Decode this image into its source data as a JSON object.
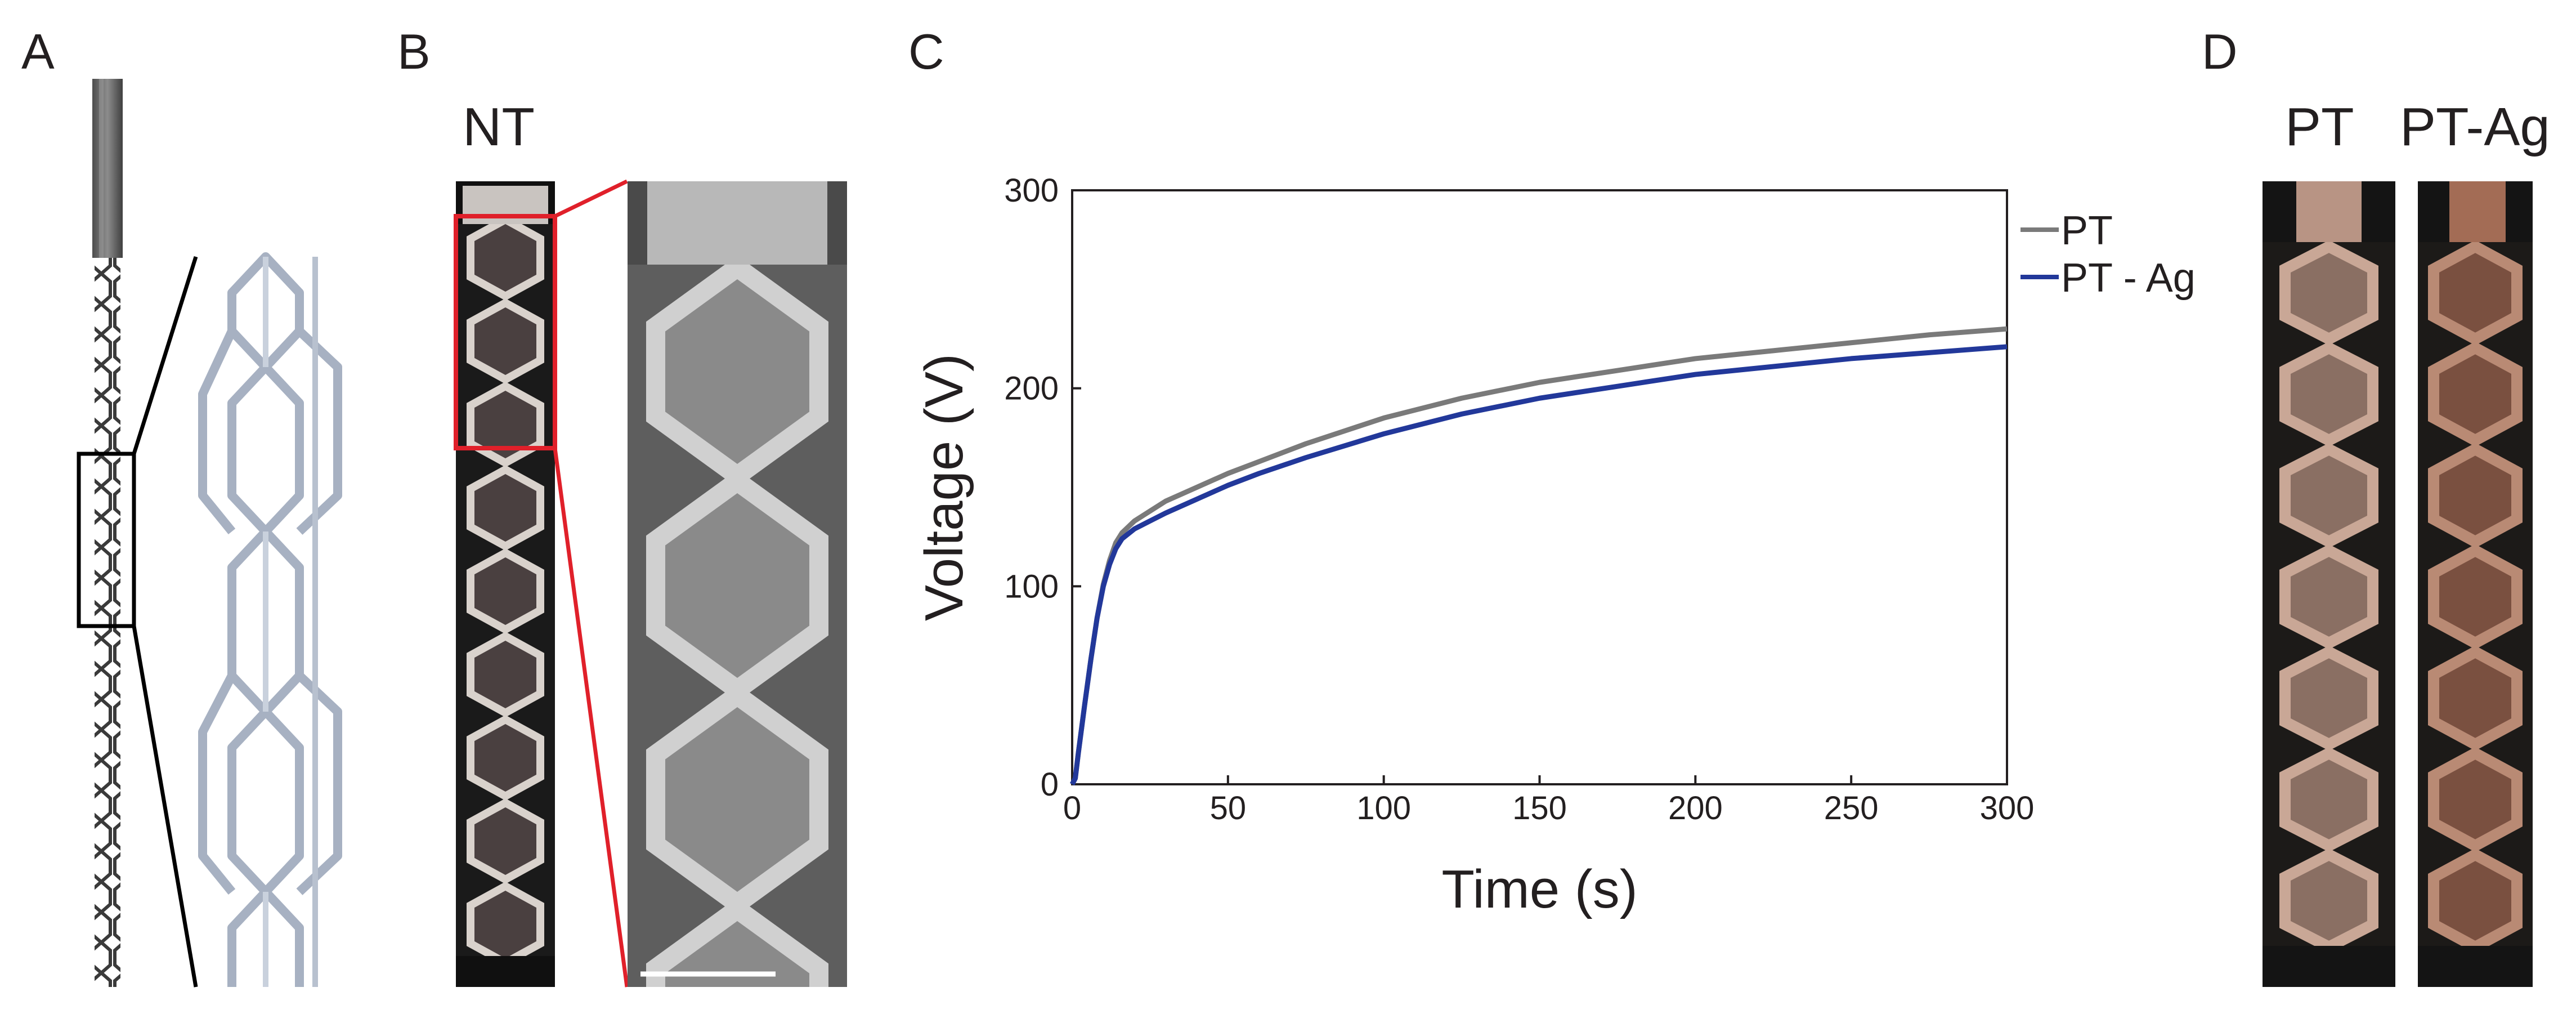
{
  "panels": {
    "a": "A",
    "b": "B",
    "c": "C",
    "d": "D"
  },
  "panel_b": {
    "label": "NT"
  },
  "panel_d": {
    "labels": [
      "PT",
      "PT-Ag"
    ]
  },
  "colors": {
    "pt": "#7a7a7a",
    "pt_ag": "#22389a",
    "highlight_box": "#e0202a",
    "photo_bg": "#111111",
    "sem_bg": "#6e6e6e",
    "strut": "#9aa6b8"
  },
  "chart_data": {
    "type": "line",
    "title": "",
    "xlabel": "Time (s)",
    "ylabel": "Voltage (V)",
    "xlim": [
      0,
      300
    ],
    "ylim": [
      0,
      300
    ],
    "xticks": [
      "0",
      "50",
      "100",
      "150",
      "200",
      "250",
      "300"
    ],
    "yticks": [
      "0",
      "100",
      "200",
      "300"
    ],
    "legend_position": "top-right",
    "series": [
      {
        "name": "PT",
        "x": [
          0,
          1,
          2,
          4,
          6,
          8,
          10,
          12,
          14,
          16,
          20,
          25,
          30,
          40,
          50,
          60,
          75,
          100,
          125,
          150,
          175,
          200,
          225,
          250,
          275,
          300
        ],
        "values": [
          0,
          3,
          16,
          40,
          63,
          84,
          101,
          113,
          122,
          127,
          133,
          138,
          143,
          150,
          157,
          163,
          172,
          185,
          195,
          203,
          209,
          215,
          219,
          223,
          227,
          230
        ]
      },
      {
        "name": "PT - Ag",
        "x": [
          0,
          1,
          2,
          4,
          6,
          8,
          10,
          12,
          14,
          16,
          20,
          25,
          30,
          40,
          50,
          60,
          75,
          100,
          125,
          150,
          175,
          200,
          225,
          250,
          275,
          300
        ],
        "values": [
          0,
          3,
          16,
          40,
          63,
          84,
          100,
          111,
          119,
          124,
          129,
          133,
          137,
          144,
          151,
          157,
          165,
          177,
          187,
          195,
          201,
          207,
          211,
          215,
          218,
          221
        ]
      }
    ]
  }
}
